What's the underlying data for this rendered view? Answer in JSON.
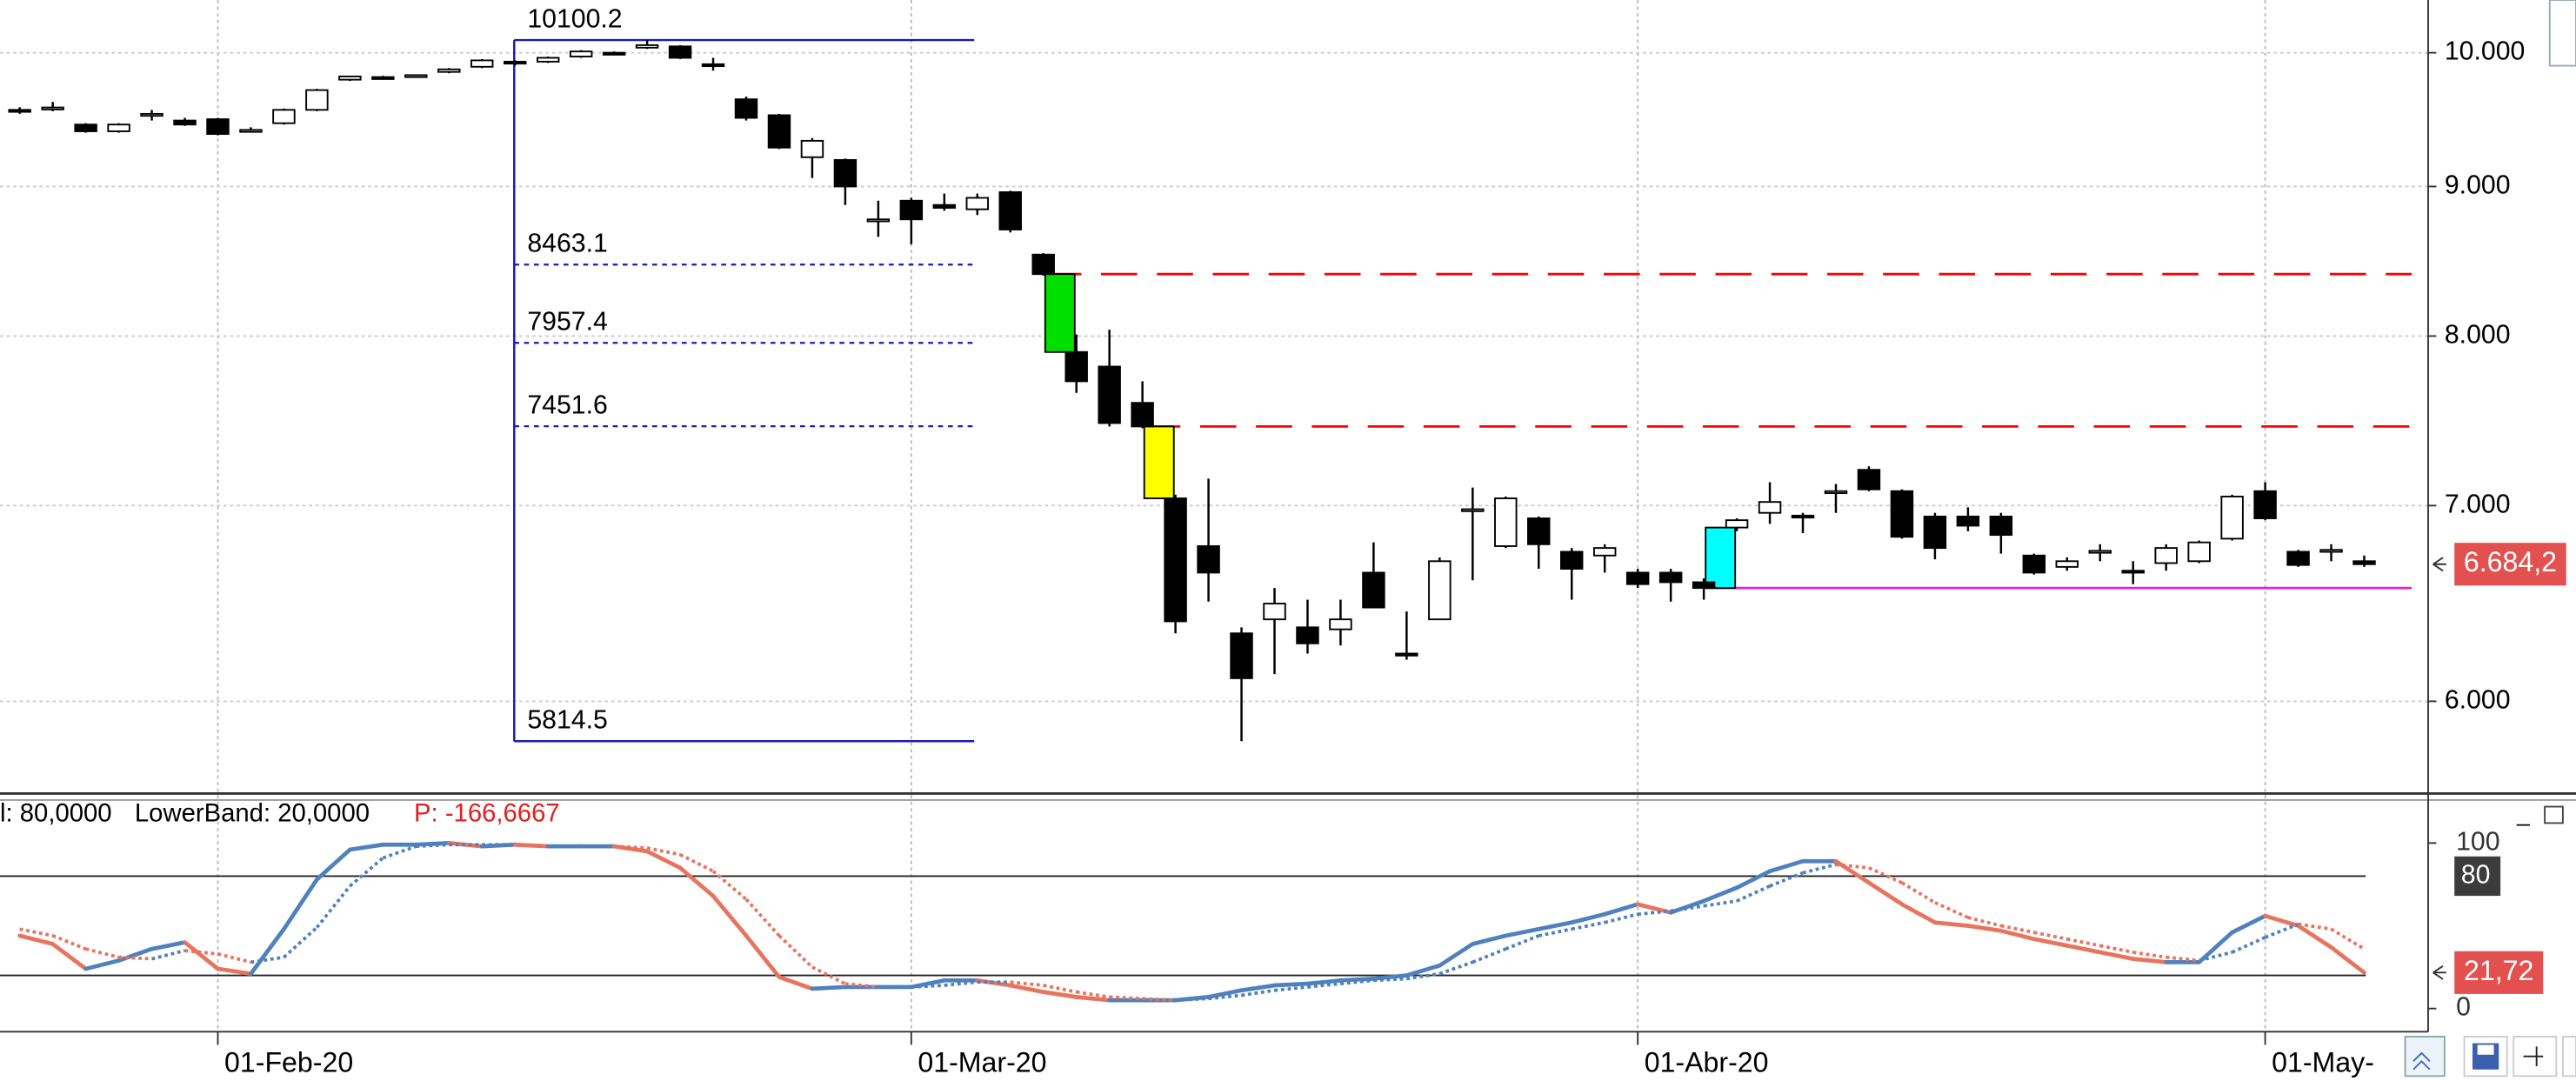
{
  "chart_data": [
    {
      "type": "candlestick",
      "categories": [
        null,
        null,
        null,
        null,
        null,
        null,
        "01-Feb-20",
        null,
        null,
        null,
        null,
        null,
        null,
        null,
        null,
        null,
        null,
        null,
        null,
        null,
        null,
        null,
        null,
        null,
        null,
        null,
        null,
        "01-Mar-20",
        null,
        null,
        null,
        null,
        null,
        null,
        null,
        null,
        null,
        null,
        null,
        null,
        null,
        null,
        null,
        null,
        null,
        null,
        null,
        null,
        null,
        "01-Abr-20",
        null,
        null,
        null,
        null,
        null,
        null,
        null,
        null,
        null,
        null,
        null,
        null,
        null,
        null,
        null,
        null,
        null,
        null,
        "01-May-",
        null,
        null,
        null
      ],
      "open": [
        9560,
        9570,
        9450,
        9400,
        9520,
        9480,
        9490,
        9400,
        9460,
        9560,
        9790,
        9810,
        9815,
        9850,
        9890,
        9930,
        9930,
        9970,
        10000,
        10040,
        10050,
        9910,
        9640,
        9520,
        9210,
        9190,
        8760,
        8900,
        8870,
        8840,
        8960,
        8530,
        7900,
        7810,
        7590,
        7040,
        6780,
        6330,
        6400,
        6360,
        6350,
        6640,
        6230,
        6400,
        6970,
        6780,
        6930,
        6750,
        6730,
        6640,
        6640,
        6590,
        6880,
        6960,
        6945,
        7070,
        7200,
        7080,
        6940,
        6940,
        6940,
        6730,
        6670,
        6745,
        6650,
        6690,
        6700,
        6820,
        7080,
        6750,
        6755,
        6700
      ],
      "high": [
        9580,
        9620,
        9460,
        9460,
        9560,
        9500,
        9500,
        9430,
        9570,
        9720,
        9820,
        9820,
        9830,
        9880,
        9950,
        9940,
        9970,
        10020,
        10010,
        10100.2,
        10060,
        9960,
        9660,
        9530,
        9350,
        9200,
        8900,
        8920,
        8950,
        8950,
        8970,
        8540,
        8010,
        8040,
        7720,
        7060,
        7150,
        6360,
        6560,
        6500,
        6500,
        6800,
        6440,
        6720,
        7100,
        7050,
        6940,
        6770,
        6790,
        6660,
        6660,
        6610,
        6930,
        7130,
        6960,
        7120,
        7220,
        7090,
        6960,
        6990,
        6960,
        6740,
        6720,
        6790,
        6700,
        6790,
        6810,
        7060,
        7130,
        6760,
        6790,
        6730
      ],
      "low": [
        9530,
        9550,
        9390,
        9390,
        9480,
        9440,
        9370,
        9390,
        9450,
        9550,
        9780,
        9790,
        9805,
        9840,
        9880,
        9900,
        9920,
        9960,
        9985,
        10030,
        9950,
        9860,
        9480,
        9270,
        9060,
        8870,
        8650,
        8600,
        8830,
        8800,
        8680,
        8390,
        7650,
        7450,
        7440,
        6330,
        6490,
        5814.5,
        6130,
        6230,
        6270,
        6460,
        6200,
        6400,
        6600,
        6770,
        6660,
        6500,
        6640,
        6560,
        6490,
        6500,
        6860,
        6900,
        6850,
        6960,
        7080,
        6820,
        6710,
        6860,
        6740,
        6630,
        6650,
        6700,
        6580,
        6650,
        6690,
        6810,
        6920,
        6670,
        6700,
        6670
      ],
      "close": [
        9545,
        9578,
        9400,
        9450,
        9530,
        9450,
        9380,
        9410,
        9560,
        9710,
        9815,
        9800,
        9825,
        9870,
        9940,
        9925,
        9960,
        10010,
        9995,
        10060,
        9960,
        9905,
        9500,
        9280,
        9330,
        9000,
        8770,
        8770,
        8850,
        8920,
        8700,
        8400,
        7720,
        7470,
        7450,
        6390,
        6640,
        6110,
        6480,
        6280,
        6400,
        6460,
        6220,
        6700,
        6980,
        7040,
        6790,
        6660,
        6770,
        6580,
        6590,
        6560,
        6920,
        7020,
        6935,
        7080,
        7090,
        6830,
        6770,
        6890,
        6840,
        6640,
        6700,
        6755,
        6645,
        6770,
        6800,
        7050,
        6930,
        6680,
        6760,
        6684.2
      ],
      "up_color": "#ffffff",
      "down_color": "#000000",
      "ylim": [
        5587,
        10424
      ],
      "log_scale": true,
      "grid": true,
      "yticks": [
        {
          "value": 10000,
          "label": "10.000"
        },
        {
          "value": 9000,
          "label": "9.000"
        },
        {
          "value": 8000,
          "label": "8.000"
        },
        {
          "value": 7000,
          "label": "7.000"
        },
        {
          "value": 6000,
          "label": "6.000"
        }
      ],
      "last_price": {
        "value": 6684.2,
        "label": "6.684,2"
      },
      "last_price_color": "#e35050",
      "fibonacci": {
        "levels": [
          10100.2,
          8463.1,
          7957.4,
          7451.6,
          5814.5
        ],
        "color": "#1a1ab8"
      },
      "gaps": [
        {
          "at": 32,
          "color": "#00e000",
          "line_color": "#ff0000",
          "dashed": true
        },
        {
          "at": 35,
          "color": "#ffff00",
          "line_color": "#ff0000",
          "dashed": true
        },
        {
          "at": 52,
          "color": "#00ffff",
          "line_color": "#e020e0",
          "dashed": false
        }
      ]
    },
    {
      "type": "line",
      "header": [
        "l: 80,0000",
        "LowerBand: 20,0000",
        "P: -166,6667"
      ],
      "series": [
        {
          "values": [
            44,
            39,
            24,
            29,
            36,
            40,
            24,
            21,
            48,
            78,
            96,
            99,
            99,
            100,
            98,
            99,
            98,
            98,
            98,
            95,
            85,
            68,
            44,
            19,
            12,
            13,
            13,
            13,
            17,
            17,
            14,
            10,
            7,
            5,
            5,
            5,
            7,
            11,
            14,
            15,
            17,
            18,
            20,
            26,
            39,
            44,
            48,
            52,
            57,
            63,
            58,
            65,
            73,
            83,
            89,
            89,
            76,
            63,
            52,
            50,
            47,
            42,
            38,
            34,
            30,
            28,
            28,
            46,
            56,
            50,
            37,
            21.72
          ],
          "color": "#4f81bd",
          "down_color": "#e8735e",
          "dashed": false
        },
        {
          "values": [
            48,
            44,
            36,
            31,
            30,
            35,
            33,
            28,
            31,
            49,
            74,
            91,
            98,
            99,
            99,
            99,
            98,
            98,
            98,
            97,
            93,
            83,
            66,
            44,
            25,
            15,
            13,
            13,
            14,
            16,
            16,
            14,
            10,
            7,
            6,
            5,
            6,
            8,
            11,
            13,
            15,
            17,
            18,
            21,
            28,
            36,
            44,
            48,
            52,
            57,
            59,
            62,
            65,
            74,
            82,
            87,
            85,
            76,
            64,
            55,
            50,
            46,
            42,
            38,
            34,
            31,
            29,
            34,
            43,
            51,
            48,
            36
          ],
          "color": "#4f81bd",
          "down_color": "#e8735e",
          "dashed": true
        }
      ],
      "ylim": [
        -14,
        120
      ],
      "yticks": [
        100,
        0
      ],
      "bands": [
        80,
        20
      ],
      "last_value": {
        "value": 21.72,
        "label": "21,72"
      },
      "last_value_color": "#e35050"
    }
  ]
}
